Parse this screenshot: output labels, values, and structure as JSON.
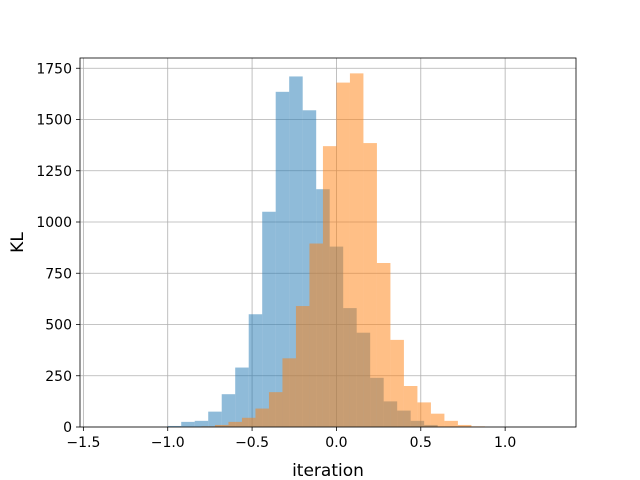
{
  "chart_data": {
    "type": "bar",
    "subtype": "overlapping-histogram",
    "title": "",
    "xlabel": "iteration",
    "ylabel": "KL",
    "xlim": [
      -1.52,
      1.42
    ],
    "ylim": [
      0,
      1800
    ],
    "xticks": [
      -1.5,
      -1.0,
      -0.5,
      0.0,
      0.5,
      1.0
    ],
    "xtick_labels": [
      "−1.5",
      "−1.0",
      "−0.5",
      "0.0",
      "0.5",
      "1.0"
    ],
    "yticks": [
      0,
      250,
      500,
      750,
      1000,
      1250,
      1500,
      1750
    ],
    "ytick_labels": [
      "0",
      "250",
      "500",
      "750",
      "1000",
      "1250",
      "1500",
      "1750"
    ],
    "grid": true,
    "alpha": 0.5,
    "series": [
      {
        "color": "#1f77b4",
        "bins": [
          {
            "x0": -1.0,
            "x1": -0.92,
            "value": 5
          },
          {
            "x0": -0.92,
            "x1": -0.84,
            "value": 25
          },
          {
            "x0": -0.84,
            "x1": -0.76,
            "value": 30
          },
          {
            "x0": -0.76,
            "x1": -0.68,
            "value": 75
          },
          {
            "x0": -0.68,
            "x1": -0.6,
            "value": 160
          },
          {
            "x0": -0.6,
            "x1": -0.52,
            "value": 290
          },
          {
            "x0": -0.52,
            "x1": -0.44,
            "value": 550
          },
          {
            "x0": -0.44,
            "x1": -0.36,
            "value": 1050
          },
          {
            "x0": -0.36,
            "x1": -0.28,
            "value": 1635
          },
          {
            "x0": -0.28,
            "x1": -0.2,
            "value": 1710
          },
          {
            "x0": -0.2,
            "x1": -0.12,
            "value": 1545
          },
          {
            "x0": -0.12,
            "x1": -0.04,
            "value": 1160
          },
          {
            "x0": -0.04,
            "x1": 0.04,
            "value": 880
          },
          {
            "x0": 0.04,
            "x1": 0.12,
            "value": 580
          },
          {
            "x0": 0.12,
            "x1": 0.2,
            "value": 460
          },
          {
            "x0": 0.2,
            "x1": 0.28,
            "value": 240
          },
          {
            "x0": 0.28,
            "x1": 0.36,
            "value": 125
          },
          {
            "x0": 0.36,
            "x1": 0.44,
            "value": 80
          },
          {
            "x0": 0.44,
            "x1": 0.52,
            "value": 30
          },
          {
            "x0": 0.52,
            "x1": 0.6,
            "value": 10
          }
        ]
      },
      {
        "color": "#ff7f0e",
        "bins": [
          {
            "x0": -0.8,
            "x1": -0.72,
            "value": 3
          },
          {
            "x0": -0.72,
            "x1": -0.64,
            "value": 10
          },
          {
            "x0": -0.64,
            "x1": -0.56,
            "value": 25
          },
          {
            "x0": -0.56,
            "x1": -0.48,
            "value": 45
          },
          {
            "x0": -0.48,
            "x1": -0.4,
            "value": 90
          },
          {
            "x0": -0.4,
            "x1": -0.32,
            "value": 170
          },
          {
            "x0": -0.32,
            "x1": -0.24,
            "value": 335
          },
          {
            "x0": -0.24,
            "x1": -0.16,
            "value": 590
          },
          {
            "x0": -0.16,
            "x1": -0.08,
            "value": 895
          },
          {
            "x0": -0.08,
            "x1": 0.0,
            "value": 1370
          },
          {
            "x0": 0.0,
            "x1": 0.08,
            "value": 1680
          },
          {
            "x0": 0.08,
            "x1": 0.16,
            "value": 1725
          },
          {
            "x0": 0.16,
            "x1": 0.24,
            "value": 1385
          },
          {
            "x0": 0.24,
            "x1": 0.32,
            "value": 800
          },
          {
            "x0": 0.32,
            "x1": 0.4,
            "value": 425
          },
          {
            "x0": 0.4,
            "x1": 0.48,
            "value": 200
          },
          {
            "x0": 0.48,
            "x1": 0.56,
            "value": 120
          },
          {
            "x0": 0.56,
            "x1": 0.64,
            "value": 65
          },
          {
            "x0": 0.64,
            "x1": 0.72,
            "value": 30
          },
          {
            "x0": 0.72,
            "x1": 0.8,
            "value": 10
          },
          {
            "x0": 0.8,
            "x1": 0.88,
            "value": 3
          }
        ]
      }
    ]
  }
}
